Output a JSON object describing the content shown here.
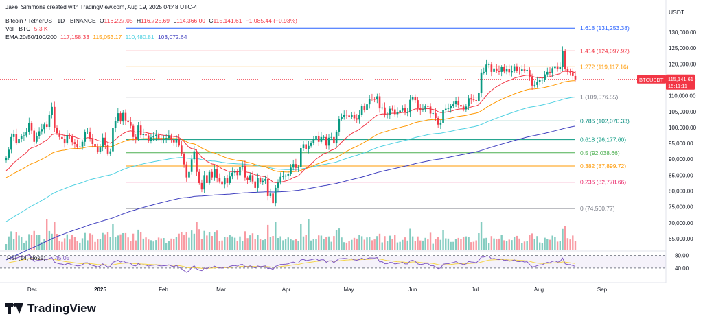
{
  "header": {
    "creator": "Jake_Simmons created with TradingView.com, Aug 19, 2025 04:48 UTC-4",
    "symbol": "Bitcoin / TetherUS · 1D · BINANCE",
    "o_label": "O",
    "o": "116,227.05",
    "h_label": "H",
    "h": "116,725.69",
    "l_label": "L",
    "l": "114,366.00",
    "c_label": "C",
    "c": "115,141.61",
    "change": "−1,085.44 (−0.93%)",
    "vol_label": "Vol · BTC",
    "vol": "5.3 K",
    "ema_label": "EMA 20/50/100/200",
    "ema20": "117,158.33",
    "ema50": "115,053.17",
    "ema100": "110,480.81",
    "ema200": "103,072.64"
  },
  "colors": {
    "up": "#089981",
    "down": "#f23645",
    "ema20": "#f23645",
    "ema50": "#ff9800",
    "ema100": "#4dd0e1",
    "ema200": "#3f3fbf",
    "rsi": "#7e57c2",
    "rsi_ma": "#f5d547"
  },
  "price_axis": {
    "currency": "USDT",
    "current_tag": "BTCUSDT",
    "current_price": "115,141.61",
    "countdown": "15:11:11"
  },
  "footer": {
    "brand": "TradingView"
  },
  "chart_data": {
    "type": "candlestick",
    "ylim": [
      60000,
      135000
    ],
    "y_ticks": [
      "130,000.00",
      "125,000.00",
      "120,000.00",
      "115,000.00",
      "110,000.00",
      "105,000.00",
      "100,000.00",
      "95,000.00",
      "90,000.00",
      "85,000.00",
      "80,000.00",
      "75,000.00",
      "70,000.00",
      "65,000.00"
    ],
    "x_ticks": [
      "Dec",
      "2025",
      "Feb",
      "Mar",
      "Apr",
      "May",
      "Jun",
      "Jul",
      "Aug",
      "Sep"
    ],
    "fib_levels": [
      {
        "label": "1.618 (131,253.38)",
        "value": 131253.38,
        "color": "#2962ff"
      },
      {
        "label": "1.414 (124,097.92)",
        "value": 124097.92,
        "color": "#f23645"
      },
      {
        "label": "1.272 (119,117.16)",
        "value": 119117.16,
        "color": "#ff9800"
      },
      {
        "label": "1 (109,576.55)",
        "value": 109576.55,
        "color": "#787b86"
      },
      {
        "label": "0.786 (102,070.33)",
        "value": 102070.33,
        "color": "#00897b"
      },
      {
        "label": "0.618 (96,177.60)",
        "value": 96177.6,
        "color": "#089981"
      },
      {
        "label": "0.5 (92,038.66)",
        "value": 92038.66,
        "color": "#4caf50"
      },
      {
        "label": "0.382 (87,899.72)",
        "value": 87899.72,
        "color": "#ff9800"
      },
      {
        "label": "0.236 (82,778.66)",
        "value": 82778.66,
        "color": "#e91e63"
      },
      {
        "label": "0 (74,500.77)",
        "value": 74500.77,
        "color": "#787b86"
      }
    ],
    "closes": [
      90500,
      93000,
      97000,
      98000,
      95000,
      96500,
      97200,
      97500,
      98500,
      101500,
      99000,
      95500,
      97300,
      98800,
      99500,
      101000,
      100200,
      104000,
      106500,
      100000,
      98200,
      97000,
      96500,
      95000,
      97600,
      97200,
      95400,
      94800,
      93800,
      94000,
      95500,
      98600,
      98700,
      96400,
      94800,
      94000,
      92400,
      93700,
      96800,
      94500,
      91800,
      92500,
      99800,
      102000,
      104500,
      101900,
      104600,
      102200,
      101700,
      100500,
      97000,
      96300,
      100600,
      97600,
      98000,
      97500,
      95800,
      96900,
      97200,
      97700,
      96600,
      96100,
      96400,
      96700,
      97500,
      96100,
      95300,
      96500,
      94300,
      91800,
      88400,
      84300,
      86000,
      90000,
      92500,
      86000,
      82500,
      80500,
      85000,
      82500,
      86000,
      84300,
      87000,
      84000,
      83000,
      82000,
      84000,
      82500,
      84600,
      85800,
      86200,
      85000,
      87500,
      88000,
      84300,
      83400,
      85000,
      83000,
      81000,
      84000,
      82700,
      83200,
      83800,
      78400,
      79200,
      76200,
      81000,
      82600,
      84500,
      84600,
      84900,
      85400,
      87400,
      88500,
      87300,
      87500,
      93500,
      94700,
      93200,
      94200,
      95200,
      96500,
      97400,
      95500,
      97000,
      97000,
      94300,
      96800,
      97000,
      95000,
      98700,
      102800,
      103300,
      104000,
      103800,
      103300,
      103900,
      102900,
      102500,
      103900,
      106800,
      105500,
      107300,
      109000,
      108900,
      108800,
      109800,
      106000,
      106300,
      104000,
      104100,
      105900,
      105700,
      104200,
      104800,
      105300,
      106200,
      104700,
      104700,
      108700,
      109600,
      108600,
      106100,
      105400,
      105700,
      106700,
      106600,
      104400,
      104500,
      103000,
      100900,
      101500,
      105400,
      105900,
      106000,
      106800,
      107300,
      108400,
      107100,
      106600,
      105700,
      106600,
      109200,
      108800,
      108600,
      108200,
      110900,
      117300,
      117500,
      119800,
      119800,
      117500,
      118600,
      117900,
      117500,
      119000,
      117600,
      118400,
      117400,
      117900,
      119300,
      117900,
      117800,
      118300,
      117700,
      118100,
      115800,
      113200,
      113400,
      114400,
      115000,
      115000,
      116700,
      117500,
      117200,
      118700,
      119300,
      118400,
      119100,
      124000,
      118400,
      117500,
      117400,
      116200,
      115141
    ],
    "rsi": {
      "label": "RSI (14, close)",
      "value": "45.05",
      "levels": [
        "80.00",
        "40.00"
      ],
      "ylim": [
        20,
        90
      ]
    }
  }
}
